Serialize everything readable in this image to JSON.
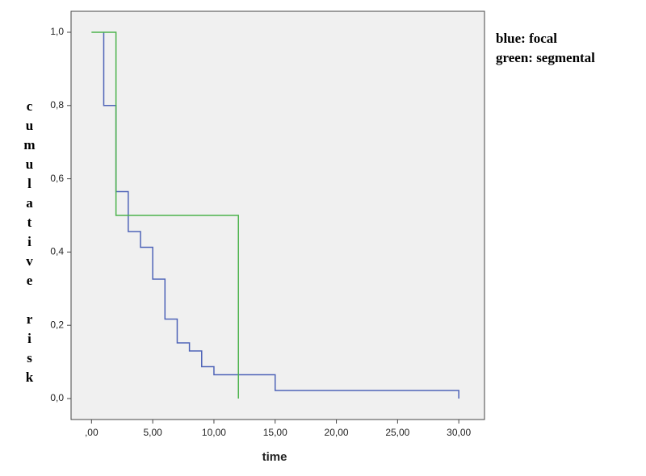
{
  "chart_data": {
    "type": "step",
    "xlabel": "time",
    "ylabel": "cumulative risk",
    "xlim": [
      -1.67,
      32.1
    ],
    "ylim": [
      -0.0573,
      1.0573
    ],
    "xticks": [
      {
        "value": 0,
        "label": ",00"
      },
      {
        "value": 5,
        "label": "5,00"
      },
      {
        "value": 10,
        "label": "10,00"
      },
      {
        "value": 15,
        "label": "15,00"
      },
      {
        "value": 20,
        "label": "20,00"
      },
      {
        "value": 25,
        "label": "25,00"
      },
      {
        "value": 30,
        "label": "30,00"
      }
    ],
    "yticks": [
      {
        "value": 0,
        "label": "0,0"
      },
      {
        "value": 0.2,
        "label": "0,2"
      },
      {
        "value": 0.4,
        "label": "0,4"
      },
      {
        "value": 0.6,
        "label": "0,6"
      },
      {
        "value": 0.8,
        "label": "0,8"
      },
      {
        "value": 1,
        "label": "1,0"
      }
    ],
    "series": [
      {
        "name": "blue: focal",
        "color": "#4f64b8",
        "x": [
          1,
          1,
          2,
          3,
          4,
          5,
          6,
          7,
          8,
          9,
          10,
          15,
          30
        ],
        "values": [
          1.0,
          0.8,
          0.565,
          0.456,
          0.413,
          0.326,
          0.217,
          0.152,
          0.13,
          0.087,
          0.065,
          0.022,
          0
        ]
      },
      {
        "name": "green: segmental",
        "color": "#4cb34c",
        "x": [
          0,
          2,
          12
        ],
        "values": [
          1.0,
          0.5,
          0
        ]
      }
    ]
  }
}
